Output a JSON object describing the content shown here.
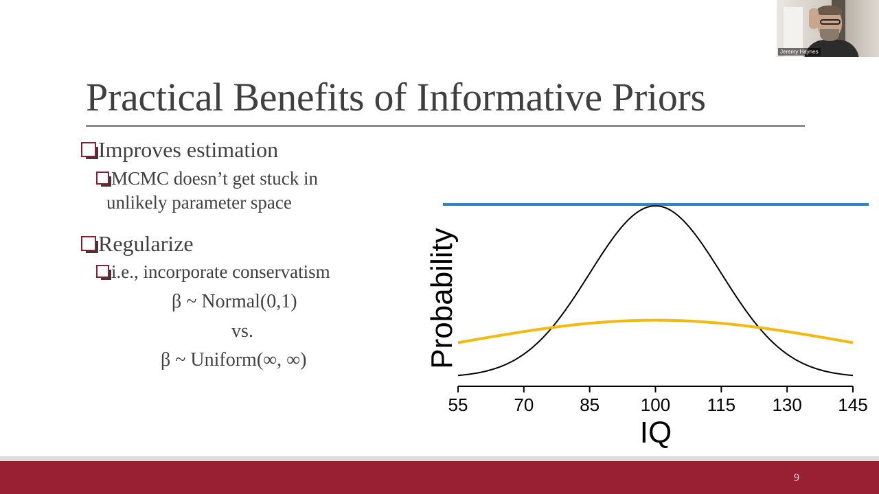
{
  "slide": {
    "title": "Practical Benefits of Informative Priors",
    "bullets": [
      {
        "text": "Improves estimation",
        "sub": [
          "MCMC doesn’t get stuck in",
          "unlikely parameter space"
        ]
      },
      {
        "text": "Regularize",
        "sub": [
          "i.e., incorporate conservatism"
        ]
      }
    ],
    "formula1": "β ~ Normal(0,1)",
    "vs": "vs.",
    "formula2": "β ~ Uniform(∞, ∞)",
    "page_number": "9"
  },
  "webcam": {
    "name": "Jeremy Haynes"
  },
  "colors": {
    "footer": "#982032",
    "bullet_box": "#8c1e2d",
    "uniform_line": "#2e86c9",
    "wide_prior": "#f2b90f",
    "narrow_prior": "#000000"
  },
  "chart_data": {
    "type": "line",
    "xlabel": "IQ",
    "ylabel": "Probability",
    "x_ticks": [
      55,
      70,
      85,
      100,
      115,
      130,
      145
    ],
    "xlim": [
      55,
      145
    ],
    "series": [
      {
        "kind": "flat",
        "color": "#2e86c9"
      },
      {
        "kind": "normal",
        "mean": 100,
        "sd": 15,
        "color": "#000000"
      },
      {
        "kind": "normal",
        "mean": 100,
        "sd": 45,
        "color": "#f2b90f"
      }
    ]
  }
}
